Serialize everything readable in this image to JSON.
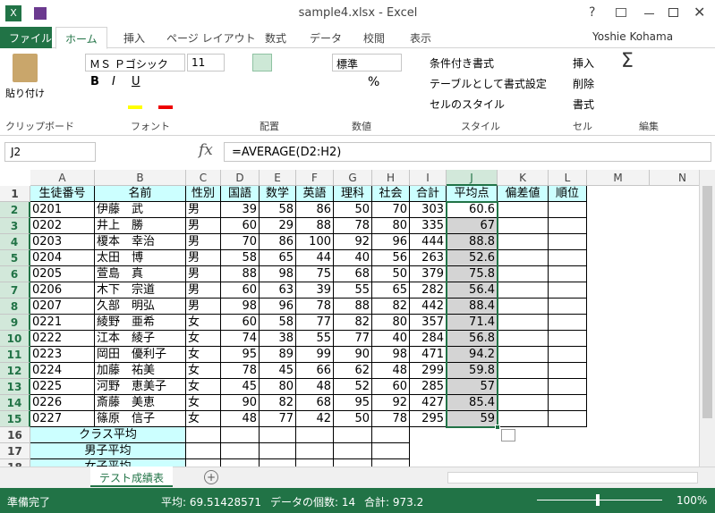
{
  "window": {
    "title": "sample4.xlsx - Excel",
    "help": "?",
    "user": "Yoshie Kohama"
  },
  "tabs": [
    "ファイル",
    "ホーム",
    "挿入",
    "ページ レイアウト",
    "数式",
    "データ",
    "校閲",
    "表示"
  ],
  "ribbon": {
    "paste": "貼り付け",
    "font_name": "ＭＳ Ｐゴシック",
    "font_size": "11",
    "font_buttons": [
      "B",
      "I",
      "U"
    ],
    "number_format": "標準",
    "percent": "%",
    "conditional": "条件付き書式",
    "table_format": "テーブルとして書式設定",
    "cell_style": "セルのスタイル",
    "insert": "挿入",
    "delete": "削除",
    "format": "書式",
    "sigma": "Σ",
    "groups": [
      "クリップボード",
      "フォント",
      "配置",
      "数値",
      "スタイル",
      "セル",
      "編集"
    ]
  },
  "formula_bar": {
    "name_box": "J2",
    "fx": "fx",
    "formula": "=AVERAGE(D2:H2)"
  },
  "sheet": {
    "columns": [
      "A",
      "B",
      "C",
      "D",
      "E",
      "F",
      "G",
      "H",
      "I",
      "J",
      "K",
      "L",
      "M",
      "N"
    ],
    "row_numbers": [
      1,
      2,
      3,
      4,
      5,
      6,
      7,
      8,
      9,
      10,
      11,
      12,
      13,
      14,
      15,
      16,
      17,
      18
    ],
    "header": [
      "生徒番号",
      "名前",
      "性別",
      "国語",
      "数学",
      "英語",
      "理科",
      "社会",
      "合計",
      "平均点",
      "偏差値",
      "順位"
    ],
    "data": [
      [
        "0201",
        "伊藤　武",
        "男",
        "39",
        "58",
        "86",
        "50",
        "70",
        "303",
        "60.6"
      ],
      [
        "0202",
        "井上　勝",
        "男",
        "60",
        "29",
        "88",
        "78",
        "80",
        "335",
        "67"
      ],
      [
        "0203",
        "榎本　幸治",
        "男",
        "70",
        "86",
        "100",
        "92",
        "96",
        "444",
        "88.8"
      ],
      [
        "0204",
        "太田　博",
        "男",
        "58",
        "65",
        "44",
        "40",
        "56",
        "263",
        "52.6"
      ],
      [
        "0205",
        "萱島　真",
        "男",
        "88",
        "98",
        "75",
        "68",
        "50",
        "379",
        "75.8"
      ],
      [
        "0206",
        "木下　宗道",
        "男",
        "60",
        "63",
        "39",
        "55",
        "65",
        "282",
        "56.4"
      ],
      [
        "0207",
        "久部　明弘",
        "男",
        "98",
        "96",
        "78",
        "88",
        "82",
        "442",
        "88.4"
      ],
      [
        "0221",
        "綾野　亜希",
        "女",
        "60",
        "58",
        "77",
        "82",
        "80",
        "357",
        "71.4"
      ],
      [
        "0222",
        "江本　綾子",
        "女",
        "74",
        "38",
        "55",
        "77",
        "40",
        "284",
        "56.8"
      ],
      [
        "0223",
        "岡田　優利子",
        "女",
        "95",
        "89",
        "99",
        "90",
        "98",
        "471",
        "94.2"
      ],
      [
        "0224",
        "加藤　祐美",
        "女",
        "78",
        "45",
        "66",
        "62",
        "48",
        "299",
        "59.8"
      ],
      [
        "0225",
        "河野　恵美子",
        "女",
        "45",
        "80",
        "48",
        "52",
        "60",
        "285",
        "57"
      ],
      [
        "0226",
        "斎藤　美恵",
        "女",
        "90",
        "82",
        "68",
        "95",
        "92",
        "427",
        "85.4"
      ],
      [
        "0227",
        "篠原　信子",
        "女",
        "48",
        "77",
        "42",
        "50",
        "78",
        "295",
        "59"
      ]
    ],
    "summary": [
      "クラス平均",
      "男子平均",
      "女子平均"
    ]
  },
  "sheet_tab": "テスト成績表",
  "status": {
    "ready": "準備完了",
    "average": "平均: 69.51428571",
    "count": "データの個数: 14",
    "sum": "合計: 973.2",
    "zoom": "100%"
  }
}
